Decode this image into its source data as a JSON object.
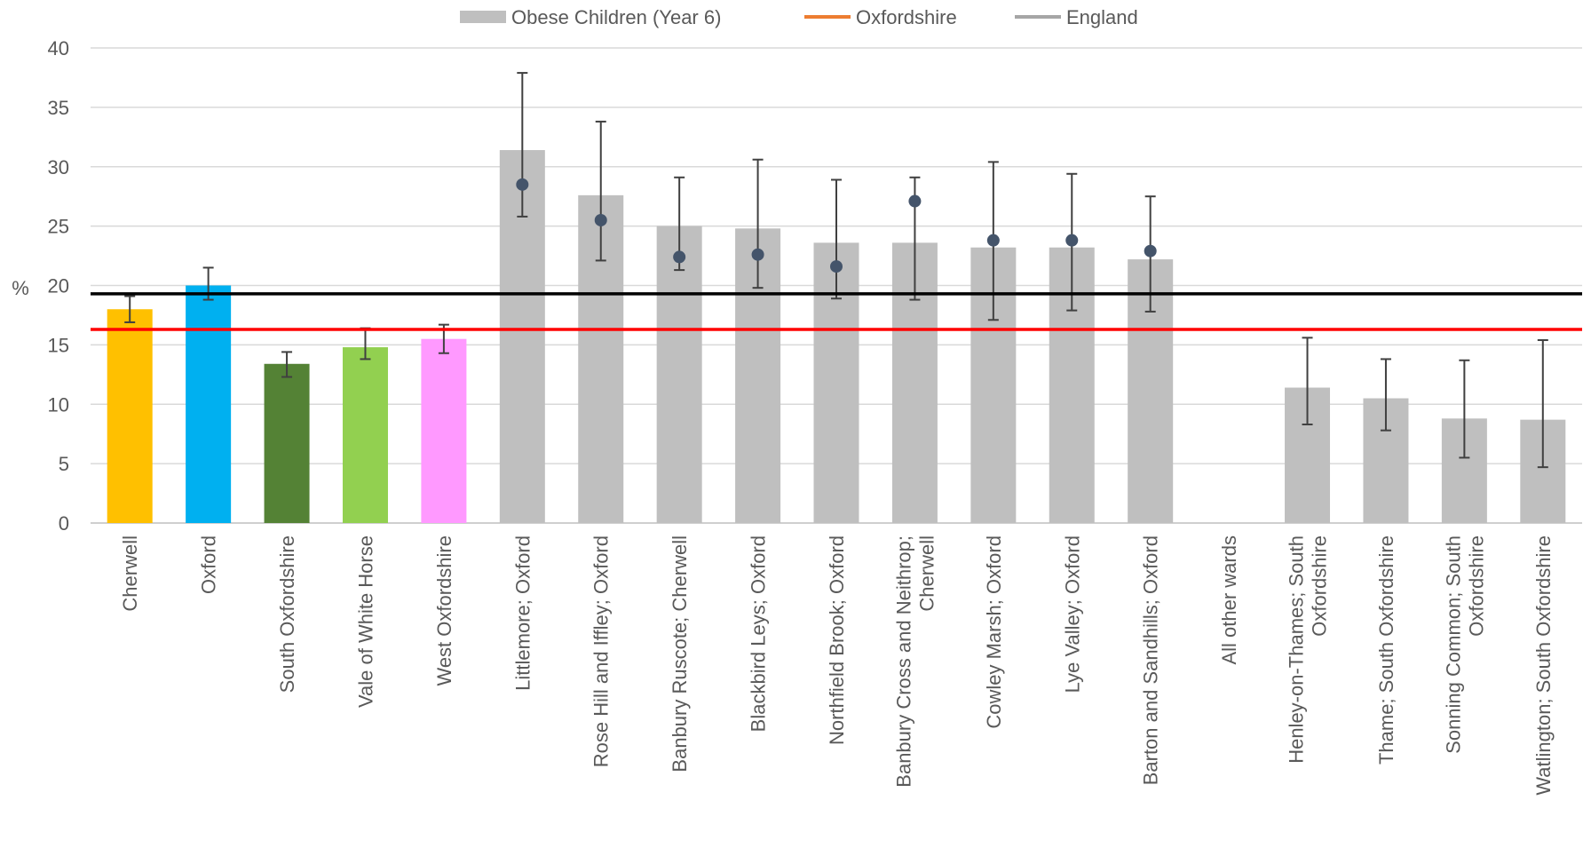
{
  "chart_data": {
    "type": "bar",
    "title": "",
    "ylabel": "%",
    "xlabel": "",
    "ylim": [
      0,
      40
    ],
    "yticks": [
      0,
      5,
      10,
      15,
      20,
      25,
      30,
      35,
      40
    ],
    "grid": true,
    "legend": {
      "position": "top",
      "entries": [
        {
          "label": "Obese Children (Year 6)",
          "color": "#bfbfbf",
          "kind": "bar"
        },
        {
          "label": "Oxfordshire",
          "color": "#ed7d31",
          "kind": "line"
        },
        {
          "label": "England",
          "color": "#a6a6a6",
          "kind": "line"
        }
      ]
    },
    "categories": [
      [
        "Cherwell"
      ],
      [
        "Oxford"
      ],
      [
        "South Oxfordshire"
      ],
      [
        "Vale of White Horse"
      ],
      [
        "West Oxfordshire"
      ],
      [
        "Littlemore; Oxford"
      ],
      [
        "Rose Hill and Iffley; Oxford"
      ],
      [
        "Banbury Ruscote; Cherwell"
      ],
      [
        "Blackbird Leys; Oxford"
      ],
      [
        "Northfield Brook; Oxford"
      ],
      [
        "Banbury Cross and Neithrop;",
        "Cherwell"
      ],
      [
        "Cowley Marsh; Oxford"
      ],
      [
        "Lye Valley; Oxford"
      ],
      [
        "Barton and Sandhills; Oxford"
      ],
      [
        "All other wards"
      ],
      [
        "Henley-on-Thames; South",
        "Oxfordshire"
      ],
      [
        "Thame; South Oxfordshire"
      ],
      [
        "Sonning Common; South",
        "Oxfordshire"
      ],
      [
        "Watlington; South Oxfordshire"
      ]
    ],
    "series": [
      {
        "name": "Obese Children (Year 6)",
        "values": [
          18.0,
          20.0,
          13.4,
          14.8,
          15.5,
          31.4,
          27.6,
          25.0,
          24.8,
          23.6,
          23.6,
          23.2,
          23.2,
          22.2,
          null,
          11.4,
          10.5,
          8.8,
          8.7
        ],
        "colors": [
          "#ffc000",
          "#00b0f0",
          "#548235",
          "#92d050",
          "#ff99ff",
          "#bfbfbf",
          "#bfbfbf",
          "#bfbfbf",
          "#bfbfbf",
          "#bfbfbf",
          "#bfbfbf",
          "#bfbfbf",
          "#bfbfbf",
          "#bfbfbf",
          "#bfbfbf",
          "#bfbfbf",
          "#bfbfbf",
          "#bfbfbf",
          "#bfbfbf"
        ],
        "error_low": [
          16.9,
          18.8,
          12.3,
          13.8,
          14.3,
          25.8,
          22.1,
          21.3,
          19.8,
          18.9,
          18.8,
          17.1,
          17.9,
          17.8,
          null,
          8.3,
          7.8,
          5.5,
          4.7
        ],
        "error_high": [
          19.1,
          21.5,
          14.4,
          16.4,
          16.7,
          37.9,
          33.8,
          29.1,
          30.6,
          28.9,
          29.1,
          30.4,
          29.4,
          27.5,
          null,
          15.6,
          13.8,
          13.7,
          15.4
        ]
      },
      {
        "kind": "marker",
        "color": "#44546a",
        "values": [
          null,
          null,
          null,
          null,
          null,
          28.5,
          25.5,
          22.4,
          22.6,
          21.6,
          27.1,
          23.8,
          23.8,
          22.9,
          null,
          null,
          null,
          null,
          null
        ]
      }
    ],
    "reference_lines": [
      {
        "value": 19.3,
        "color": "#000000"
      },
      {
        "value": 16.3,
        "color": "#ff0000"
      }
    ]
  }
}
